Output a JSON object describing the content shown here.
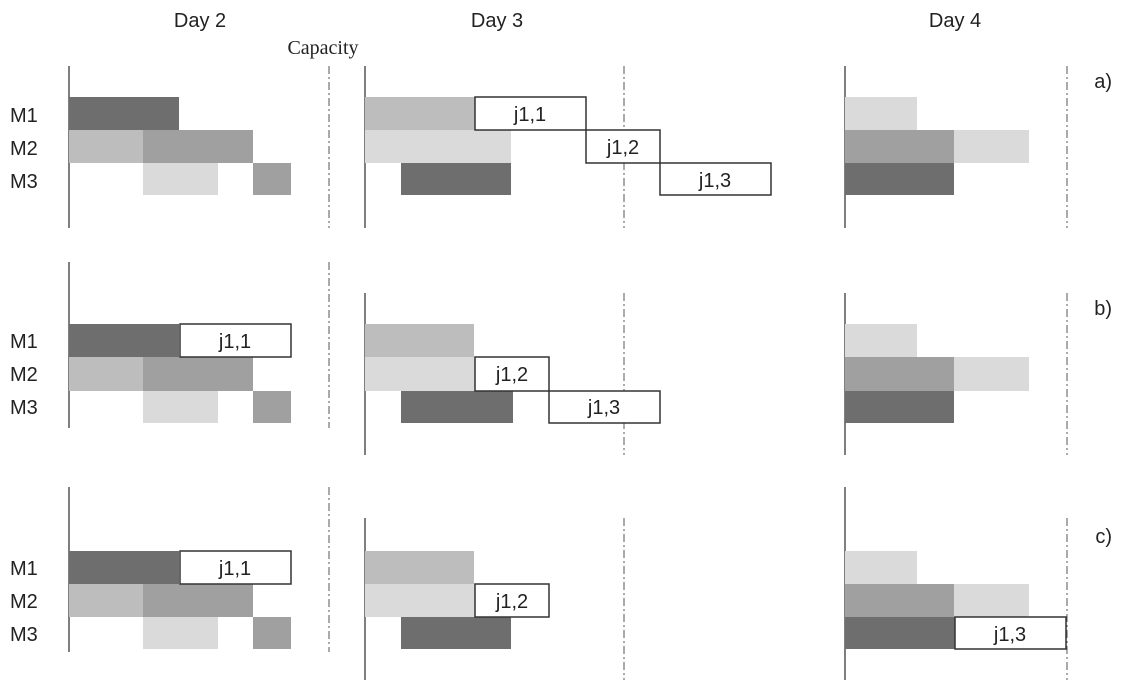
{
  "headers": {
    "day2": "Day 2",
    "day3": "Day 3",
    "day4": "Day 4",
    "capacity": "Capacity"
  },
  "machines": [
    "M1",
    "M2",
    "M3"
  ],
  "panels": [
    {
      "label": "a)",
      "jobs": [
        {
          "text": "j1,1",
          "machine": "M1",
          "day": "Day 3"
        },
        {
          "text": "j1,2",
          "machine": "M2",
          "day": "Day 3"
        },
        {
          "text": "j1,3",
          "machine": "M3",
          "day": "Day 3"
        }
      ]
    },
    {
      "label": "b)",
      "jobs": [
        {
          "text": "j1,1",
          "machine": "M1",
          "day": "Day 2"
        },
        {
          "text": "j1,2",
          "machine": "M2",
          "day": "Day 3"
        },
        {
          "text": "j1,3",
          "machine": "M3",
          "day": "Day 3"
        }
      ]
    },
    {
      "label": "c)",
      "jobs": [
        {
          "text": "j1,1",
          "machine": "M1",
          "day": "Day 2"
        },
        {
          "text": "j1,2",
          "machine": "M2",
          "day": "Day 3"
        },
        {
          "text": "j1,3",
          "machine": "M3",
          "day": "Day 4"
        }
      ]
    }
  ],
  "colors": {
    "dark": "#6e6e6e",
    "medium": "#a0a0a0",
    "light": "#bdbdbd",
    "pale": "#dadada",
    "job_fill": "#ffffff"
  }
}
